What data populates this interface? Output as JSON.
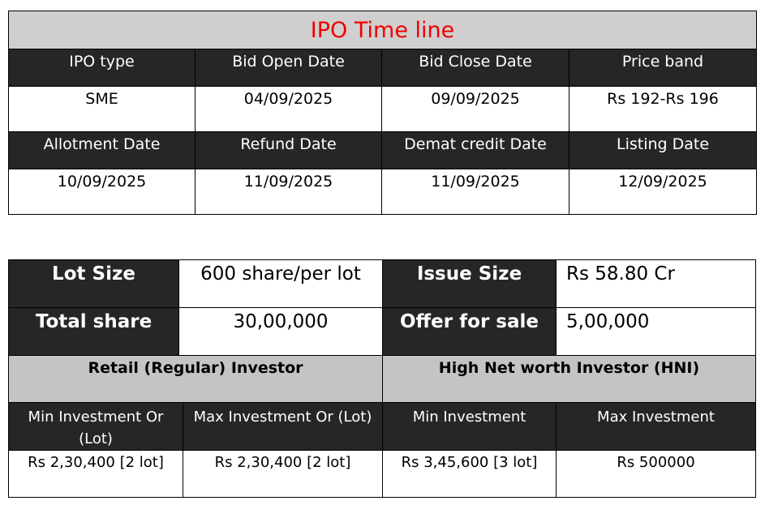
{
  "timeline": {
    "title": "IPO Time line",
    "row1_headers": [
      "IPO type",
      "Bid Open Date",
      "Bid Close Date",
      "Price band"
    ],
    "row1_values": [
      "SME",
      "04/09/2025",
      "09/09/2025",
      "Rs 192-Rs 196"
    ],
    "row2_headers": [
      "Allotment Date",
      "Refund Date",
      "Demat credit Date",
      "Listing Date"
    ],
    "row2_values": [
      "10/09/2025",
      "11/09/2025",
      "11/09/2025",
      "12/09/2025"
    ]
  },
  "issue": {
    "lot_size_label": "Lot Size",
    "lot_size_value": "600 share/per lot",
    "issue_size_label": "Issue Size",
    "issue_size_value": "Rs 58.80 Cr",
    "total_share_label": "Total share",
    "total_share_value": "30,00,000",
    "offer_for_sale_label": "Offer for sale",
    "offer_for_sale_value": "5,00,000"
  },
  "investors": {
    "retail_title": "Retail (Regular) Investor",
    "hni_title": "High Net worth Investor (HNI)",
    "sub_headers": [
      "Min Investment Or (Lot)",
      "Max Investment Or (Lot)",
      "Min Investment",
      "Max Investment"
    ],
    "amounts": [
      "Rs 2,30,400 [2 lot]",
      "Rs 2,30,400 [2 lot]",
      "Rs 3,45,600 [3 lot]",
      "Rs 500000"
    ]
  },
  "colors": {
    "title_bg": "#d0cece",
    "title_text": "#ee0000",
    "header_bg": "#262626",
    "category_bg": "#c4c4c4"
  }
}
